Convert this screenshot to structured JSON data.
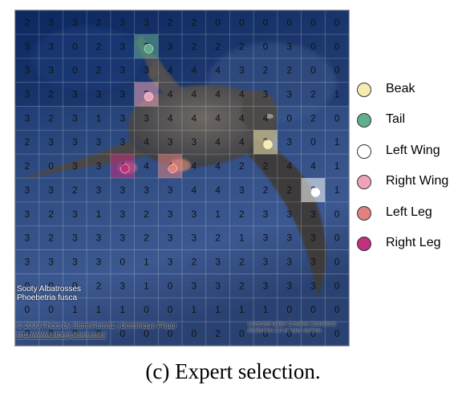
{
  "grid": {
    "rows": 14,
    "cols": 14,
    "values": [
      [
        2,
        3,
        3,
        2,
        3,
        3,
        2,
        2,
        0,
        0,
        0,
        0,
        0,
        0
      ],
      [
        3,
        3,
        0,
        2,
        3,
        3,
        3,
        2,
        2,
        2,
        0,
        3,
        0,
        0
      ],
      [
        3,
        3,
        0,
        2,
        3,
        3,
        4,
        4,
        4,
        3,
        2,
        2,
        0,
        0
      ],
      [
        3,
        2,
        3,
        3,
        3,
        3,
        4,
        4,
        4,
        4,
        3,
        3,
        2,
        1
      ],
      [
        3,
        2,
        3,
        1,
        3,
        3,
        4,
        4,
        4,
        4,
        4,
        0,
        2,
        0
      ],
      [
        2,
        3,
        3,
        3,
        3,
        4,
        3,
        3,
        4,
        4,
        3,
        3,
        0,
        1
      ],
      [
        2,
        0,
        3,
        3,
        4,
        4,
        4,
        4,
        4,
        2,
        2,
        4,
        4,
        1
      ],
      [
        3,
        3,
        2,
        3,
        3,
        3,
        3,
        4,
        4,
        3,
        2,
        2,
        3,
        1
      ],
      [
        3,
        2,
        3,
        1,
        3,
        2,
        3,
        3,
        1,
        2,
        3,
        3,
        3,
        0
      ],
      [
        3,
        2,
        3,
        3,
        3,
        2,
        3,
        3,
        2,
        1,
        3,
        3,
        3,
        0
      ],
      [
        3,
        3,
        3,
        3,
        0,
        1,
        3,
        2,
        3,
        2,
        3,
        3,
        3,
        0
      ],
      [
        0,
        0,
        0,
        2,
        3,
        1,
        0,
        3,
        3,
        2,
        3,
        3,
        3,
        0
      ],
      [
        0,
        0,
        1,
        1,
        1,
        0,
        0,
        1,
        1,
        1,
        1,
        0,
        0,
        0
      ],
      [
        0,
        0,
        0,
        0,
        0,
        0,
        0,
        0,
        2,
        0,
        0,
        0,
        0,
        0
      ]
    ],
    "highlights": [
      {
        "part": "tail",
        "row": 1,
        "col": 5
      },
      {
        "part": "right_wing",
        "row": 3,
        "col": 5
      },
      {
        "part": "beak",
        "row": 5,
        "col": 10
      },
      {
        "part": "right_leg",
        "row": 6,
        "col": 4
      },
      {
        "part": "left_leg",
        "row": 6,
        "col": 6
      },
      {
        "part": "left_wing",
        "row": 7,
        "col": 12
      }
    ]
  },
  "parts": {
    "beak": {
      "label": "Beak",
      "color": "#f6ebb1"
    },
    "tail": {
      "label": "Tail",
      "color": "#5fae8c"
    },
    "left_wing": {
      "label": "Left Wing",
      "color": "#ffffff"
    },
    "right_wing": {
      "label": "Right Wing",
      "color": "#efa3b8"
    },
    "left_leg": {
      "label": "Left Leg",
      "color": "#e2817e"
    },
    "right_leg": {
      "label": "Right Leg",
      "color": "#c0307c"
    }
  },
  "legend_order": [
    "beak",
    "tail",
    "left_wing",
    "right_wing",
    "left_leg",
    "right_leg"
  ],
  "credits": {
    "species_line1": "Sooty Albatrosses",
    "species_line2": "Phoebetria fusca",
    "copyright": "© 2009 Photo by StormPetrel1 | Dominique Filippi",
    "website": "http://www.stormpetrel.com/",
    "license_line1": "Licensed under Creative Commons",
    "license_line2": "Attribution 2.0 or later version"
  },
  "caption": "(c) Expert selection."
}
